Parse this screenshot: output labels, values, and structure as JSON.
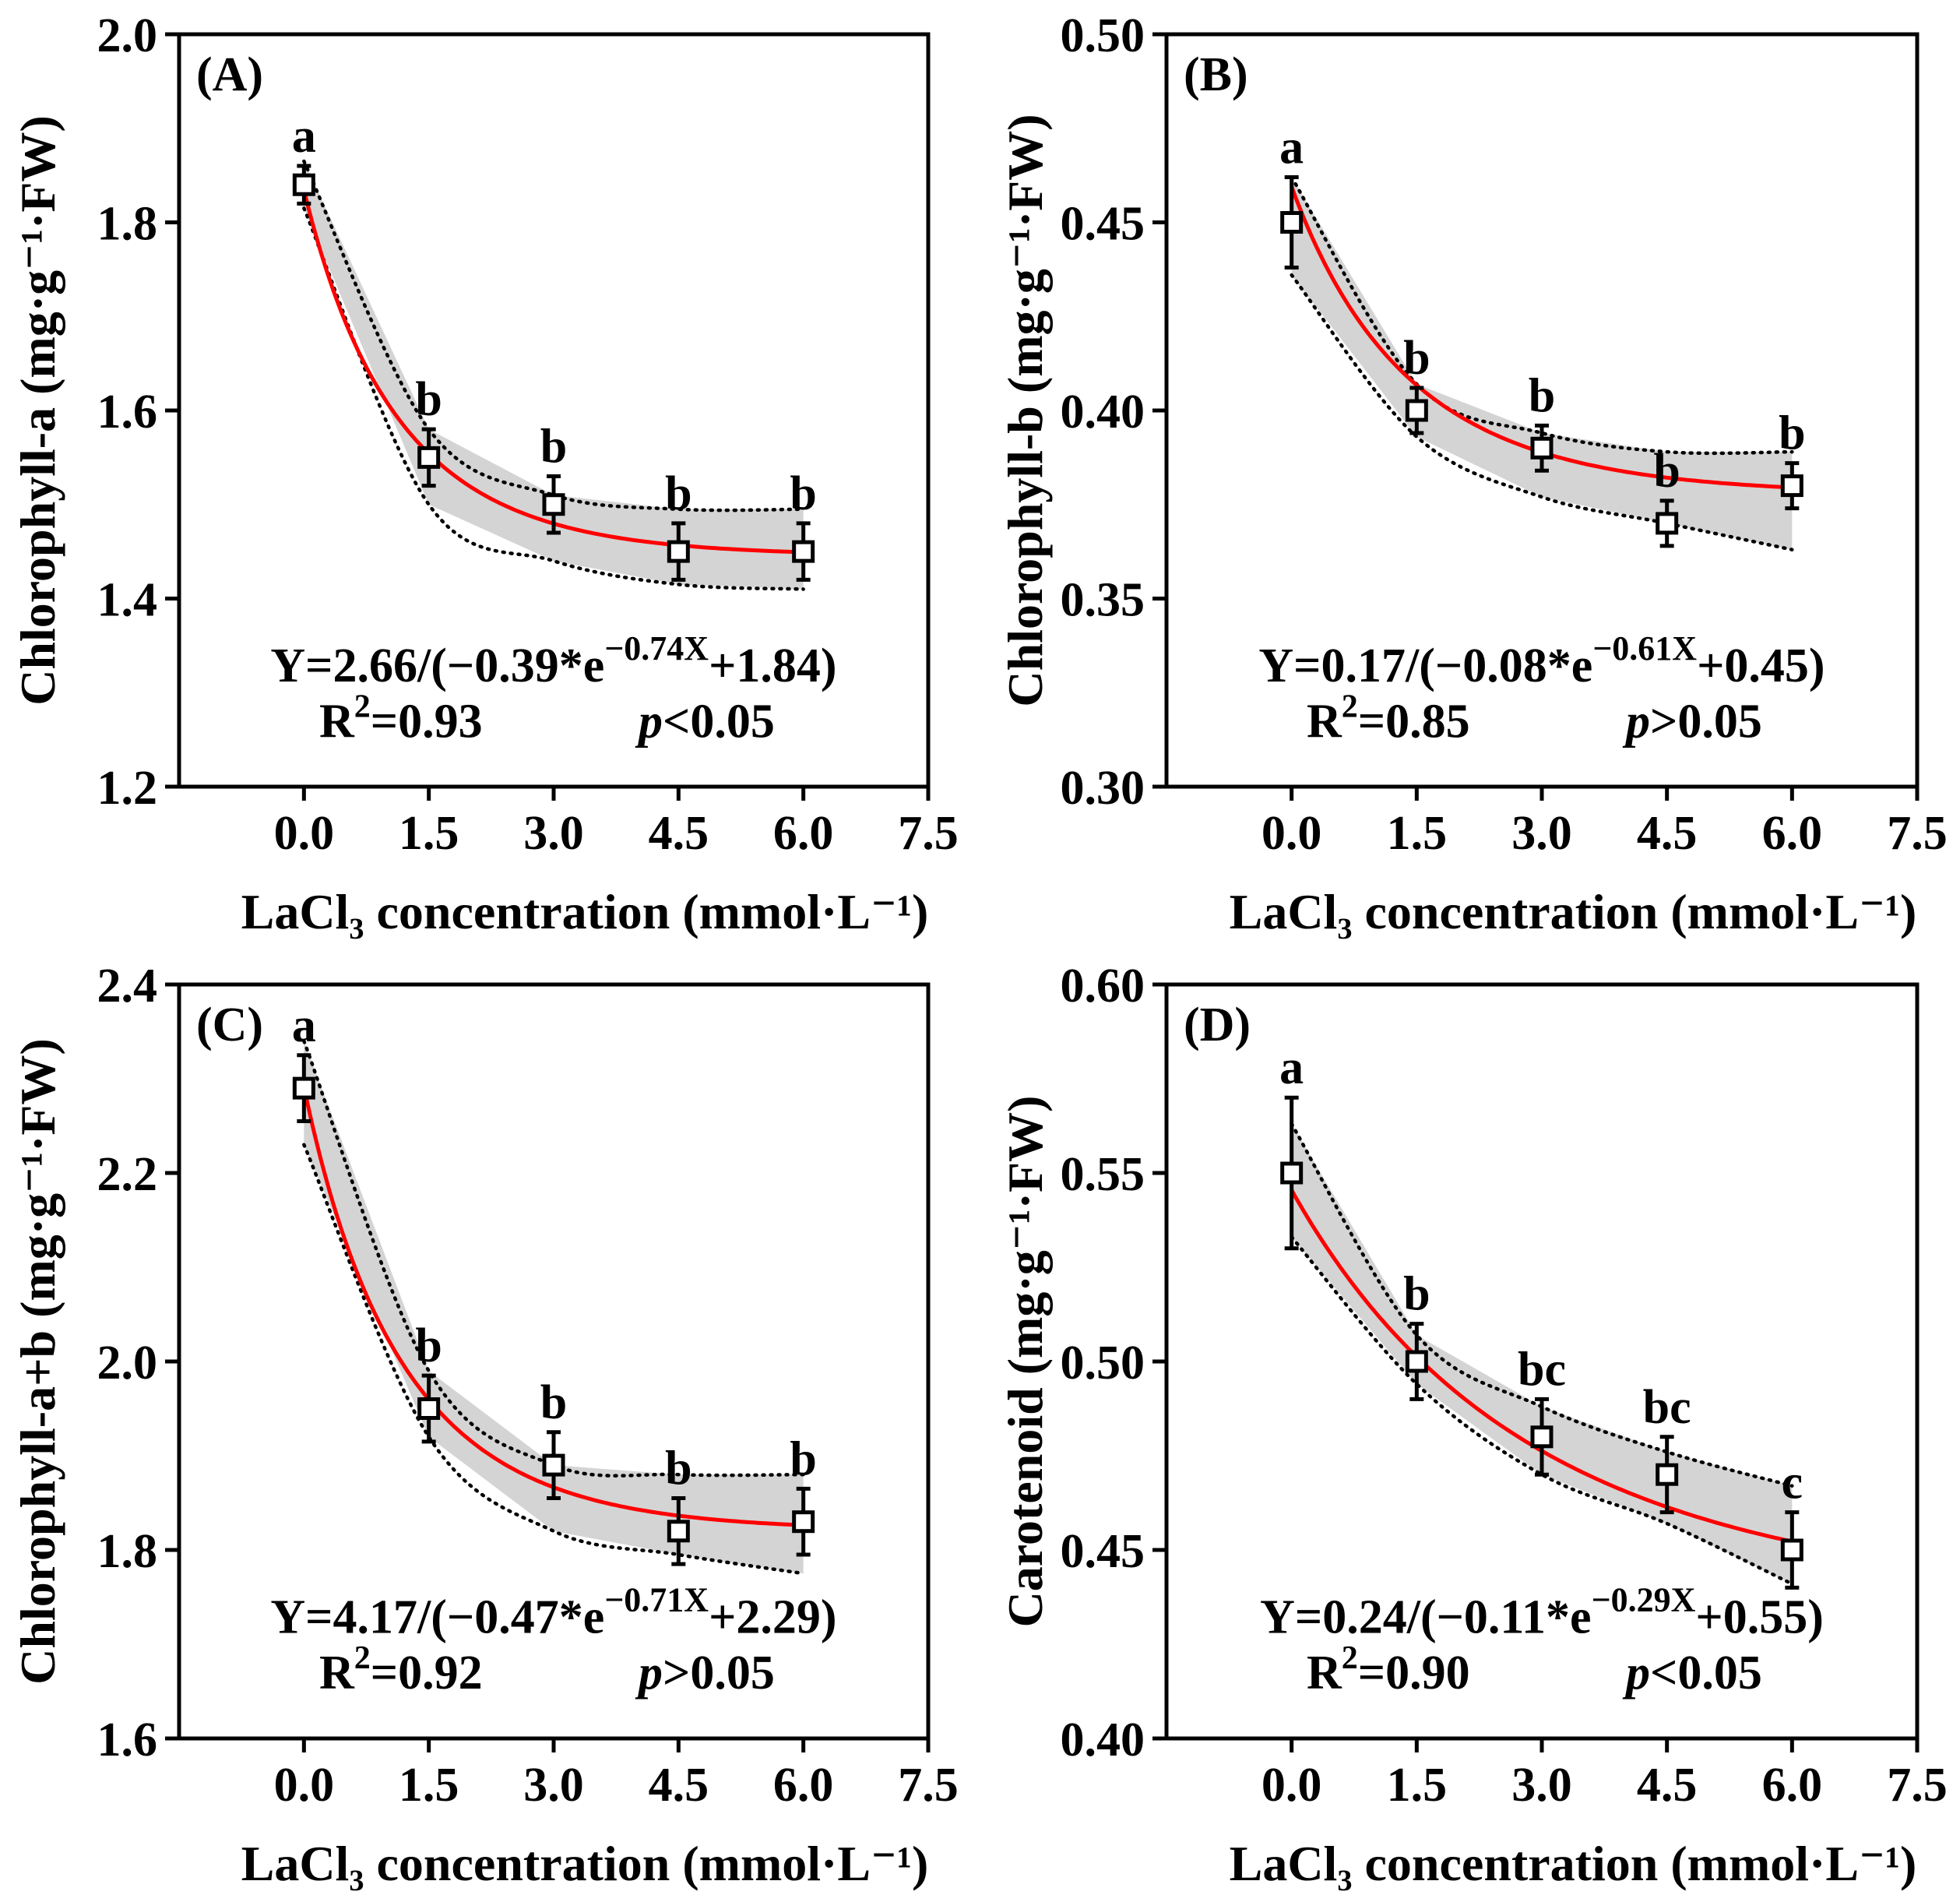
{
  "chart_data": [
    {
      "type": "scatter",
      "panel_label": "(A)",
      "ylabel": "Chlorophyll-a (mg·g⁻¹·FW)",
      "xlabel": "LaCl₃ concentration (mmol·L⁻¹)",
      "xlim": [
        -1.5,
        7.5
      ],
      "ylim": [
        1.2,
        2.0
      ],
      "xticks": [
        "0.0",
        "1.5",
        "3.0",
        "4.5",
        "6.0",
        "7.5"
      ],
      "yticks": [
        "1.2",
        "1.4",
        "1.6",
        "1.8",
        "2.0"
      ],
      "x": [
        0,
        1.5,
        3.0,
        4.5,
        6.0
      ],
      "y": [
        1.84,
        1.55,
        1.5,
        1.45,
        1.45
      ],
      "err": [
        0.02,
        0.03,
        0.03,
        0.03,
        0.03
      ],
      "letters": [
        "a",
        "b",
        "b",
        "b",
        "b"
      ],
      "fit": {
        "a": 2.66,
        "b": -0.39,
        "k": -0.74,
        "c": 1.84
      },
      "band_upper": [
        1.865,
        1.58,
        1.51,
        1.495,
        1.495
      ],
      "band_lower": [
        1.815,
        1.5,
        1.44,
        1.415,
        1.41
      ],
      "equation": {
        "lead": "Y=2.66/(−0.39*e",
        "exp": "−0.74X",
        "tail": "+1.84)"
      },
      "r2_value": "=0.93",
      "p_value": "<0.05"
    },
    {
      "type": "scatter",
      "panel_label": "(B)",
      "ylabel": "Chlorophyll-b (mg·g⁻¹·FW)",
      "xlabel": "LaCl₃ concentration (mmol·L⁻¹)",
      "xlim": [
        -1.5,
        7.5
      ],
      "ylim": [
        0.3,
        0.5
      ],
      "xticks": [
        "0.0",
        "1.5",
        "3.0",
        "4.5",
        "6.0",
        "7.5"
      ],
      "yticks": [
        "0.30",
        "0.35",
        "0.40",
        "0.45",
        "0.50"
      ],
      "x": [
        0,
        1.5,
        3.0,
        4.5,
        6.0
      ],
      "y": [
        0.45,
        0.4,
        0.39,
        0.37,
        0.38
      ],
      "err": [
        0.012,
        0.006,
        0.006,
        0.006,
        0.006
      ],
      "letters": [
        "a",
        "b",
        "b",
        "b",
        "b"
      ],
      "fit": {
        "a": 0.17,
        "b": -0.08,
        "k": -0.61,
        "c": 0.45
      },
      "band_upper": [
        0.462,
        0.407,
        0.394,
        0.389,
        0.389
      ],
      "band_lower": [
        0.436,
        0.393,
        0.377,
        0.37,
        0.363
      ],
      "equation": {
        "lead": "Y=0.17/(−0.08*e",
        "exp": "−0.61X",
        "tail": "+0.45)"
      },
      "r2_value": "=0.85",
      "p_value": ">0.05"
    },
    {
      "type": "scatter",
      "panel_label": "(C)",
      "ylabel": "Chlorophyll-a+b (mg·g⁻¹·FW)",
      "xlabel": "LaCl₃ concentration (mmol·L⁻¹)",
      "xlim": [
        -1.5,
        7.5
      ],
      "ylim": [
        1.6,
        2.4
      ],
      "xticks": [
        "0.0",
        "1.5",
        "3.0",
        "4.5",
        "6.0",
        "7.5"
      ],
      "yticks": [
        "1.6",
        "1.8",
        "2.0",
        "2.2",
        "2.4"
      ],
      "x": [
        0,
        1.5,
        3.0,
        4.5,
        6.0
      ],
      "y": [
        2.29,
        1.95,
        1.89,
        1.82,
        1.83
      ],
      "err": [
        0.035,
        0.035,
        0.035,
        0.035,
        0.035
      ],
      "letters": [
        "a",
        "b",
        "b",
        "b",
        "b"
      ],
      "fit": {
        "a": 4.17,
        "b": -0.47,
        "k": -0.71,
        "c": 2.29
      },
      "band_upper": [
        2.34,
        1.99,
        1.89,
        1.88,
        1.88
      ],
      "band_lower": [
        2.23,
        1.92,
        1.82,
        1.795,
        1.775
      ],
      "equation": {
        "lead": "Y=4.17/(−0.47*e",
        "exp": "−0.71X",
        "tail": "+2.29)"
      },
      "r2_value": "=0.92",
      "p_value": ">0.05"
    },
    {
      "type": "scatter",
      "panel_label": "(D)",
      "ylabel": "Carotenoid  (mg·g⁻¹·FW)",
      "xlabel": "LaCl₃ concentration (mmol·L⁻¹)",
      "xlim": [
        -1.5,
        7.5
      ],
      "ylim": [
        0.4,
        0.6
      ],
      "xticks": [
        "0.0",
        "1.5",
        "3.0",
        "4.5",
        "6.0",
        "7.5"
      ],
      "yticks": [
        "0.40",
        "0.45",
        "0.50",
        "0.55",
        "0.60"
      ],
      "x": [
        0,
        1.5,
        3.0,
        4.5,
        6.0
      ],
      "y": [
        0.55,
        0.5,
        0.48,
        0.47,
        0.45
      ],
      "err": [
        0.02,
        0.01,
        0.01,
        0.01,
        0.01
      ],
      "letters": [
        "a",
        "b",
        "bc",
        "bc",
        "c"
      ],
      "fit": {
        "a": 0.24,
        "b": -0.11,
        "k": -0.29,
        "c": 0.55
      },
      "band_upper": [
        0.563,
        0.507,
        0.488,
        0.476,
        0.467
      ],
      "band_lower": [
        0.533,
        0.494,
        0.47,
        0.457,
        0.441
      ],
      "equation": {
        "lead": "Y=0.24/(−0.11*e",
        "exp": "−0.29X",
        "tail": "+0.55)"
      },
      "r2_value": "=0.90",
      "p_value": "<0.05"
    }
  ]
}
